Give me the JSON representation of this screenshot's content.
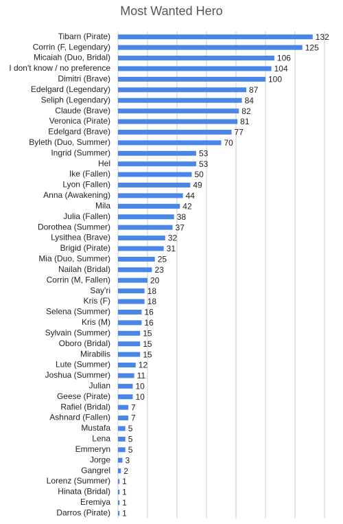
{
  "chart_data": {
    "type": "barh",
    "title": "Most Wanted Hero",
    "categories": [
      "Tibarn (Pirate)",
      "Corrin (F, Legendary)",
      "Micaiah (Duo, Bridal)",
      "I don't know / no preference",
      "Dimitri (Brave)",
      "Edelgard (Legendary)",
      "Seliph (Legendary)",
      "Claude (Brave)",
      "Veronica (Pirate)",
      "Edelgard (Brave)",
      "Byleth (Duo, Summer)",
      "Ingrid (Summer)",
      "Hel",
      "Ike (Fallen)",
      "Lyon (Fallen)",
      "Anna (Awakening)",
      "Mila",
      "Julia (Fallen)",
      "Dorothea (Summer)",
      "Lysithea (Brave)",
      "Brigid (Pirate)",
      "Mia (Duo, Summer)",
      "Nailah (Bridal)",
      "Corrin (M, Fallen)",
      "Say'ri",
      "Kris (F)",
      "Selena (Summer)",
      "Kris (M)",
      "Sylvain (Summer)",
      "Oboro (Bridal)",
      "Mirabilis",
      "Lute (Summer)",
      "Joshua (Summer)",
      "Julian",
      "Geese (Pirate)",
      "Rafiel (Bridal)",
      "Ashnard (Fallen)",
      "Mustafa",
      "Lena",
      "Emmeryn",
      "Jorge",
      "Gangrel",
      "Lorenz (Summer)",
      "Hinata (Bridal)",
      "Eremiya",
      "Darros (Pirate)"
    ],
    "values": [
      132,
      125,
      106,
      104,
      100,
      87,
      84,
      82,
      81,
      77,
      70,
      53,
      53,
      50,
      49,
      44,
      42,
      38,
      37,
      32,
      31,
      25,
      23,
      20,
      18,
      18,
      16,
      16,
      15,
      15,
      15,
      12,
      11,
      10,
      10,
      7,
      7,
      5,
      5,
      5,
      3,
      2,
      1,
      1,
      1,
      1
    ],
    "color": "#4a86e8",
    "xlim": [
      0,
      140
    ],
    "xticks": [
      0,
      20,
      40,
      60,
      80,
      100,
      120,
      140
    ],
    "grid": true
  }
}
